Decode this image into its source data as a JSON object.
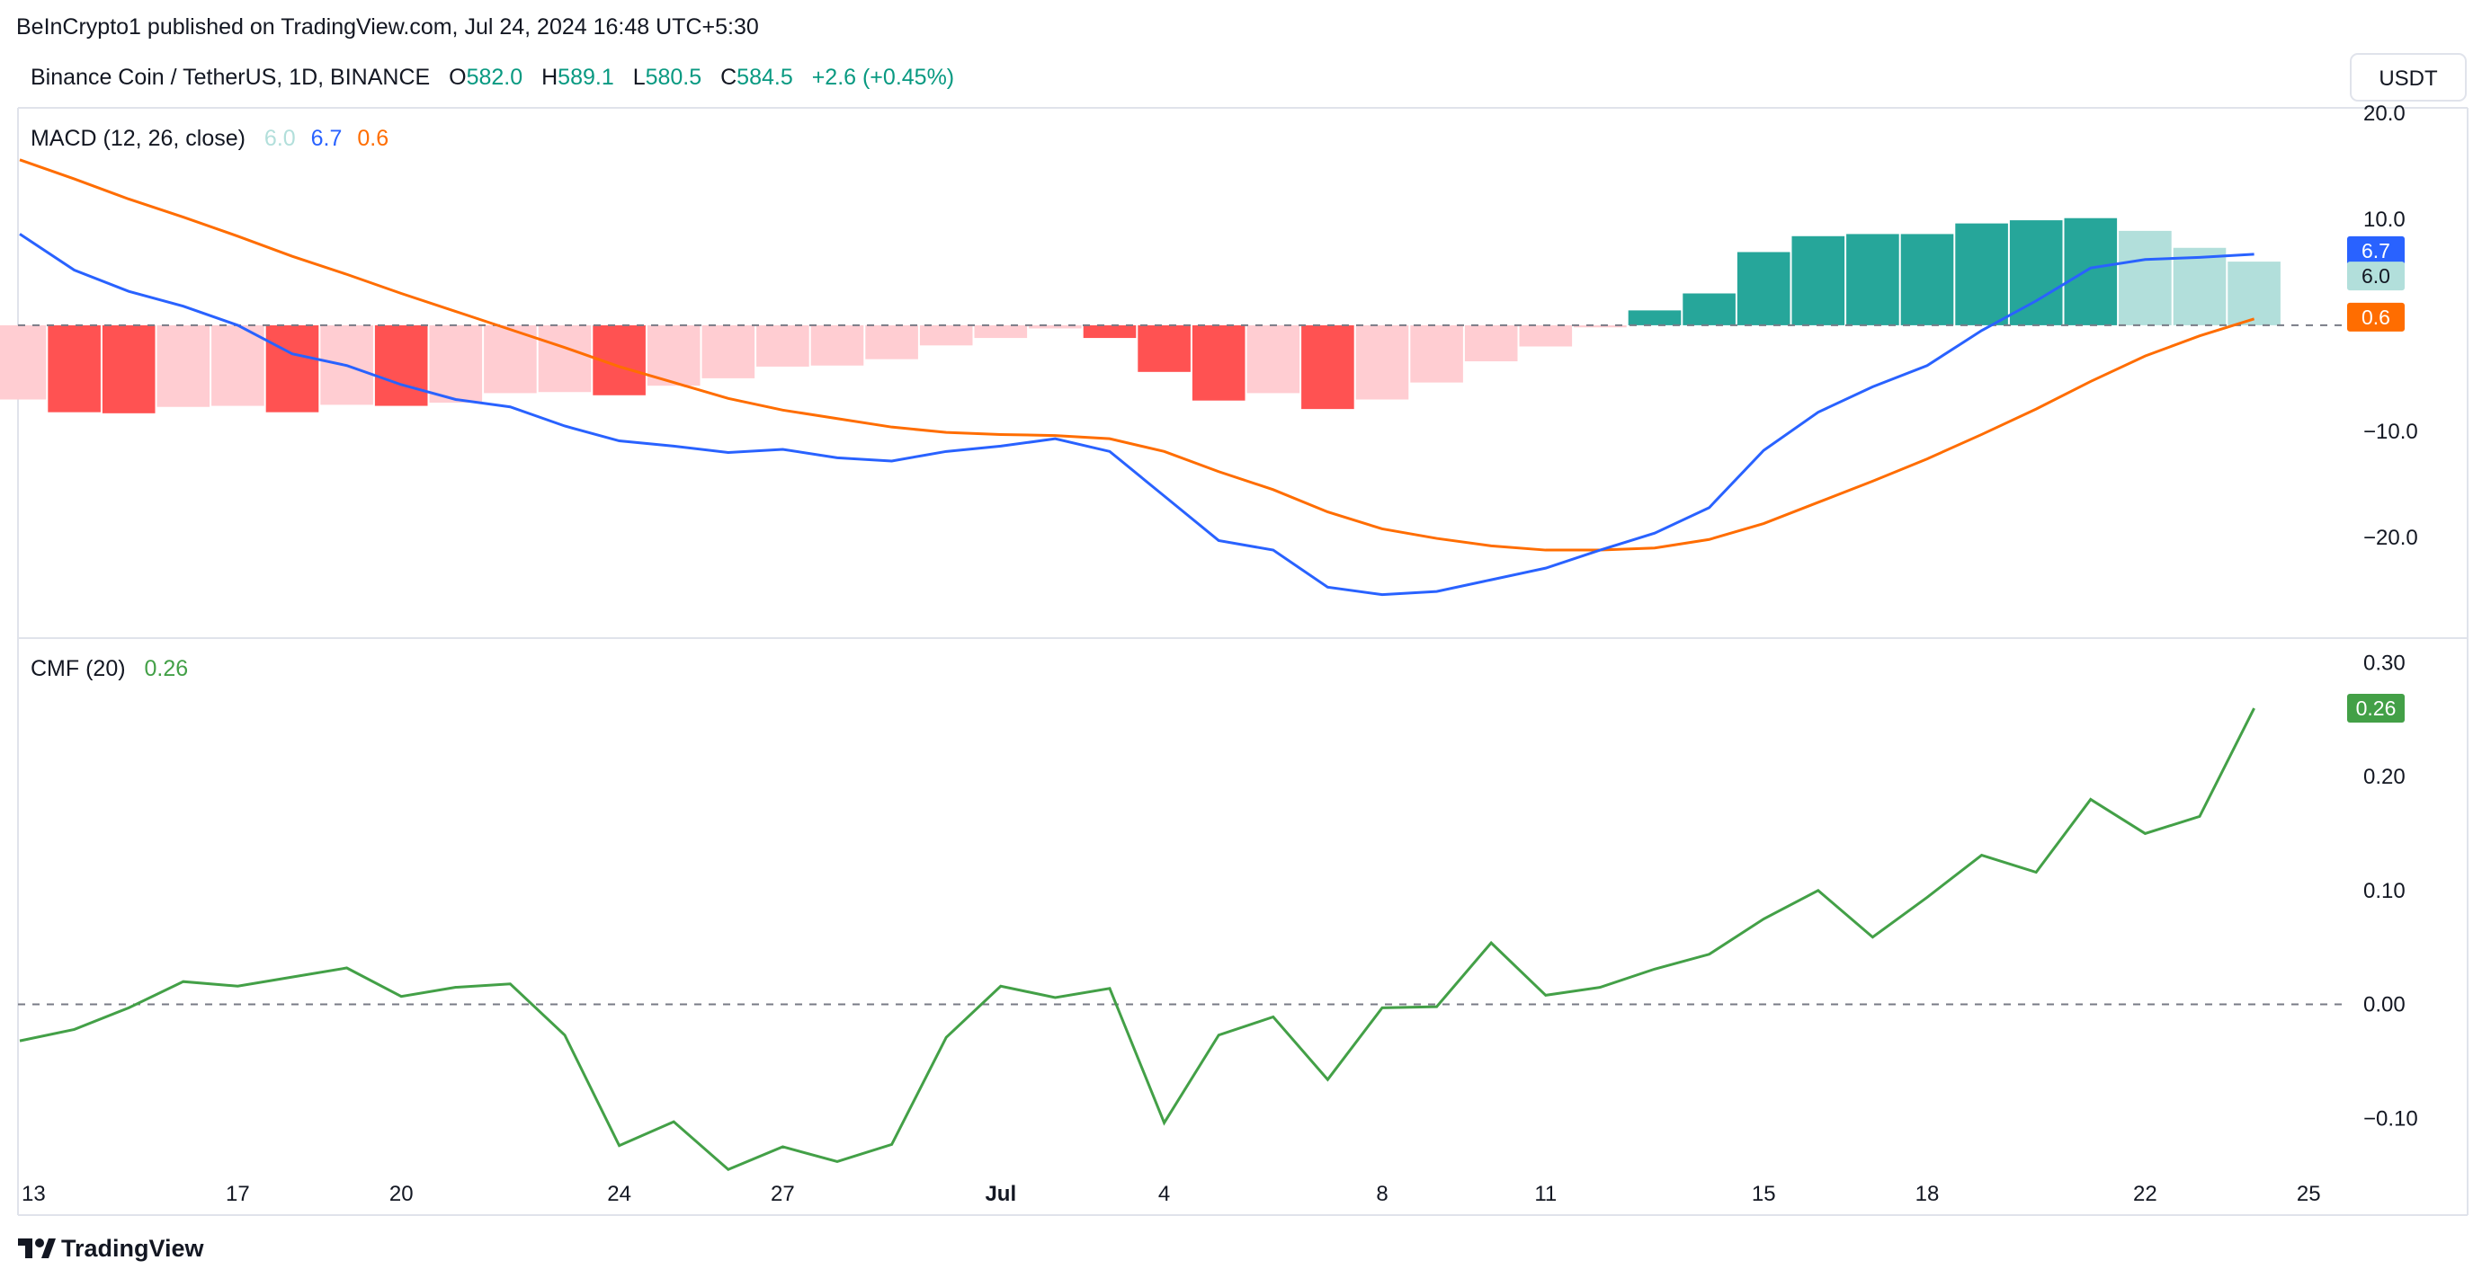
{
  "header": {
    "published": "BeInCrypto1 published on TradingView.com, Jul 24, 2024 16:48 UTC+5:30"
  },
  "symbol": {
    "title": "Binance Coin / TetherUS, 1D, BINANCE",
    "o_label": "O",
    "o": "582.0",
    "h_label": "H",
    "h": "589.1",
    "l_label": "L",
    "l": "580.5",
    "c_label": "C",
    "c": "584.5",
    "change": "+2.6 (+0.45%)",
    "currency": "USDT"
  },
  "footer": {
    "brand": "TradingView"
  },
  "colors": {
    "up": "#089981",
    "hist_up_strong": "#26a69a",
    "hist_up_weak": "#b2dfdb",
    "hist_dn_strong": "#ff5252",
    "hist_dn_weak": "#ffcdd2",
    "macd": "#2962ff",
    "signal": "#ff6d00",
    "cmf": "#43a047",
    "grid": "#e0e3eb",
    "text": "#131722"
  },
  "chart_data": [
    {
      "type": "line",
      "title": "MACD (12, 26, close)",
      "legend_values": [
        "6.0",
        "6.7",
        "0.6"
      ],
      "last_labels": {
        "histogram": "6.0",
        "macd": "6.7",
        "signal": "0.6"
      },
      "ylim": [
        -29.5,
        20.5
      ],
      "y_ticks": [
        20,
        10,
        -10,
        -20
      ],
      "y_tick_labels": [
        "20.0",
        "10.0",
        "−10.0",
        "−20.0"
      ],
      "zero_line": 0,
      "series": [
        {
          "name": "MACD",
          "color": "#2962ff",
          "values": [
            8.6,
            5.2,
            3.2,
            1.8,
            0.0,
            -2.7,
            -3.8,
            -5.6,
            -7.0,
            -7.7,
            -9.5,
            -10.9,
            -11.4,
            -12.0,
            -11.7,
            -12.5,
            -12.8,
            -11.9,
            -11.4,
            -10.7,
            -11.9,
            -16.1,
            -20.3,
            -21.2,
            -24.7,
            -25.4,
            -25.1,
            -24.0,
            -22.9,
            -21.2,
            -19.6,
            -17.2,
            -11.8,
            -8.2,
            -5.8,
            -3.8,
            -0.5,
            2.3,
            5.4,
            6.2,
            6.4,
            6.7
          ]
        },
        {
          "name": "Signal",
          "color": "#ff6d00",
          "values": [
            15.6,
            13.8,
            11.9,
            10.2,
            8.4,
            6.5,
            4.8,
            3.0,
            1.3,
            -0.4,
            -2.1,
            -3.9,
            -5.4,
            -6.9,
            -8.0,
            -8.8,
            -9.6,
            -10.1,
            -10.3,
            -10.4,
            -10.7,
            -11.9,
            -13.8,
            -15.5,
            -17.6,
            -19.2,
            -20.1,
            -20.8,
            -21.2,
            -21.2,
            -21.0,
            -20.2,
            -18.7,
            -16.7,
            -14.7,
            -12.6,
            -10.3,
            -7.9,
            -5.3,
            -2.9,
            -1.0,
            0.6
          ]
        },
        {
          "name": "Histogram",
          "type": "bar",
          "values": [
            -7.0,
            -8.2,
            -8.3,
            -7.7,
            -7.6,
            -8.2,
            -7.5,
            -7.6,
            -7.3,
            -6.4,
            -6.3,
            -6.6,
            -5.7,
            -5.0,
            -3.9,
            -3.8,
            -3.2,
            -1.9,
            -1.2,
            -0.3,
            -1.2,
            -4.4,
            -7.1,
            -6.4,
            -7.9,
            -7.0,
            -5.4,
            -3.4,
            -2.0,
            -0.2,
            1.4,
            3.0,
            6.9,
            8.4,
            8.6,
            8.6,
            9.6,
            9.9,
            10.1,
            8.9,
            7.3,
            6.0
          ]
        }
      ]
    },
    {
      "type": "line",
      "title": "CMF (20)",
      "legend_value": "0.26",
      "last_label": "0.26",
      "ylim": [
        -0.185,
        0.32
      ],
      "y_ticks": [
        0.3,
        0.2,
        0.1,
        0.0,
        -0.1
      ],
      "y_tick_labels": [
        "0.30",
        "0.20",
        "0.10",
        "0.00",
        "−0.10"
      ],
      "zero_line": 0,
      "series": [
        {
          "name": "CMF",
          "color": "#43a047",
          "values": [
            -0.032,
            -0.022,
            -0.003,
            0.02,
            0.016,
            0.024,
            0.032,
            0.007,
            0.015,
            0.018,
            -0.027,
            -0.124,
            -0.103,
            -0.145,
            -0.125,
            -0.138,
            -0.123,
            -0.029,
            0.016,
            0.006,
            0.014,
            -0.104,
            -0.027,
            -0.011,
            -0.066,
            -0.003,
            -0.002,
            0.054,
            0.008,
            0.015,
            0.031,
            0.044,
            0.075,
            0.1,
            0.059,
            0.094,
            0.131,
            0.116,
            0.18,
            0.15,
            0.165,
            0.26
          ]
        }
      ]
    }
  ],
  "x_axis": {
    "labels": [
      {
        "text": "13",
        "index": 0,
        "bold": false
      },
      {
        "text": "17",
        "index": 4,
        "bold": false
      },
      {
        "text": "20",
        "index": 7,
        "bold": false
      },
      {
        "text": "24",
        "index": 11,
        "bold": false
      },
      {
        "text": "27",
        "index": 14,
        "bold": false
      },
      {
        "text": "Jul",
        "index": 18,
        "bold": true
      },
      {
        "text": "4",
        "index": 21,
        "bold": false
      },
      {
        "text": "8",
        "index": 25,
        "bold": false
      },
      {
        "text": "11",
        "index": 28,
        "bold": false
      },
      {
        "text": "15",
        "index": 32,
        "bold": false
      },
      {
        "text": "18",
        "index": 35,
        "bold": false
      },
      {
        "text": "22",
        "index": 39,
        "bold": false
      },
      {
        "text": "25",
        "index": 42,
        "bold": false
      }
    ]
  }
}
